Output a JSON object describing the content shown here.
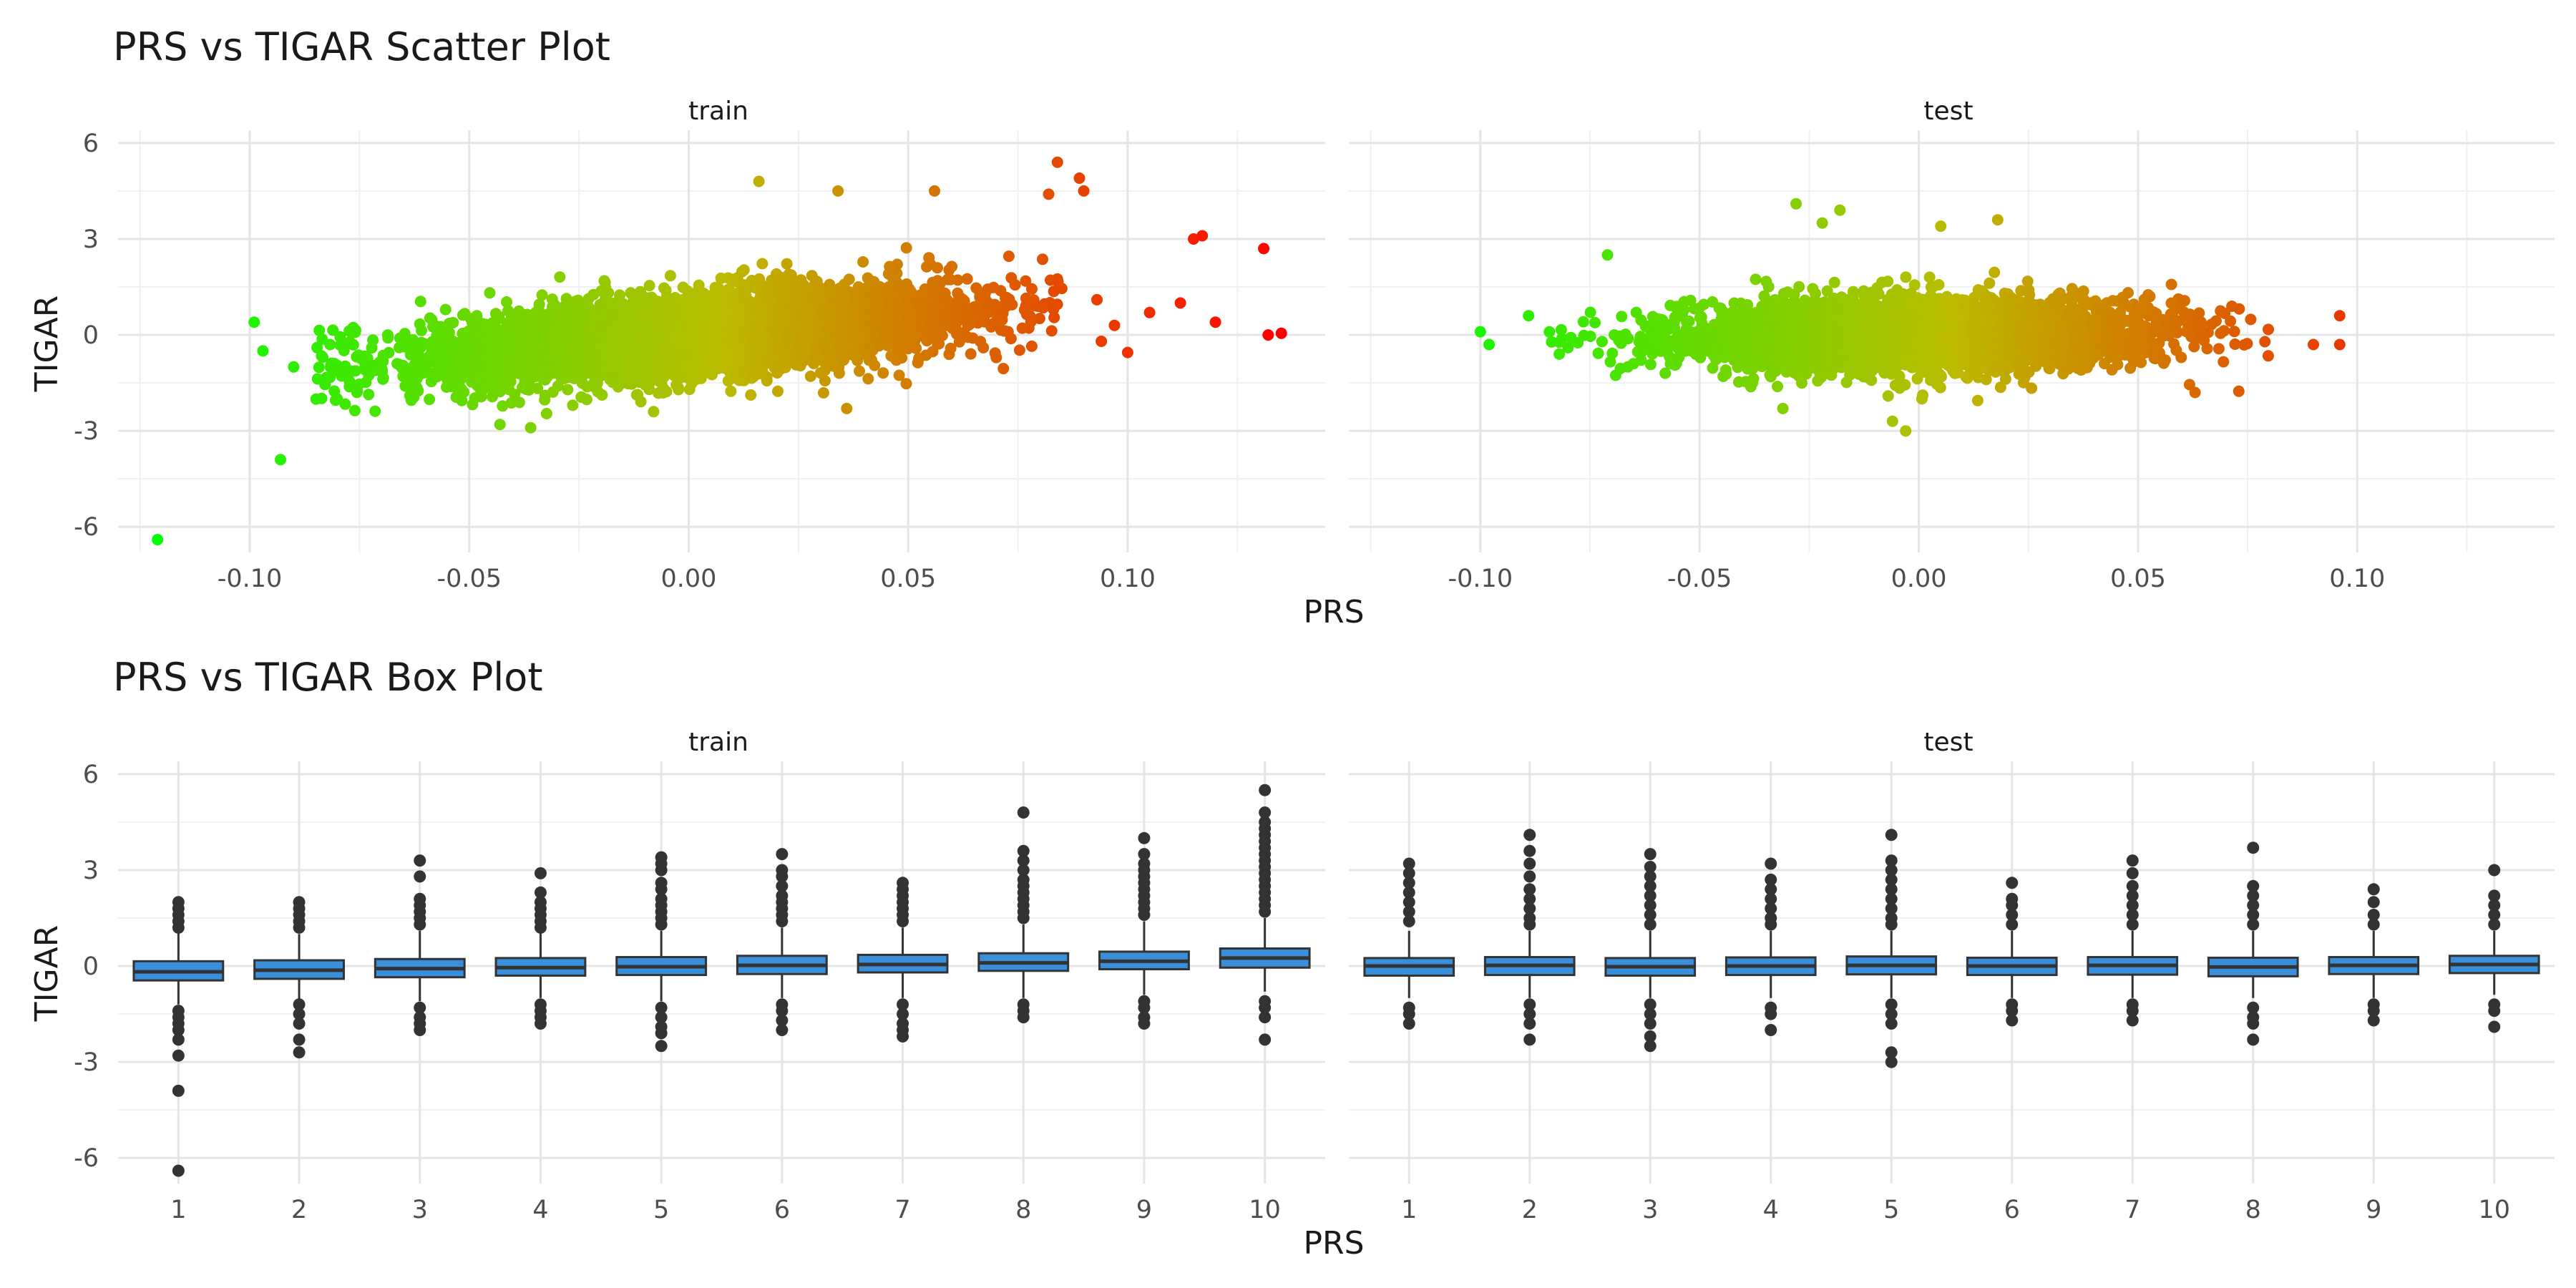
{
  "chart_data": [
    {
      "type": "scatter",
      "title": "PRS vs TIGAR Scatter Plot",
      "xlabel": "PRS",
      "ylabel": "TIGAR",
      "facets": [
        "train",
        "test"
      ],
      "xlim": [
        -0.13,
        0.145
      ],
      "ylim": [
        -6.8,
        6.4
      ],
      "x_ticks": [
        "-0.10",
        "-0.05",
        "0.00",
        "0.05",
        "0.10"
      ],
      "y_ticks": [
        "-6",
        "-3",
        "0",
        "3",
        "6"
      ],
      "grid": true,
      "color_scale": {
        "low": "#00ff00",
        "mid": "#bbbb00",
        "high": "#ff0000",
        "mapped_to": "PRS"
      },
      "series": [
        {
          "facet": "train",
          "cloud": {
            "n": 5000,
            "x_sd": 0.03,
            "slope": 12,
            "y_sd": 0.62
          },
          "points": [
            {
              "x": -0.121,
              "y": -6.4
            },
            {
              "x": -0.093,
              "y": -3.9
            },
            {
              "x": -0.099,
              "y": 0.4
            },
            {
              "x": -0.097,
              "y": -0.5
            },
            {
              "x": -0.09,
              "y": -1.0
            },
            {
              "x": 0.016,
              "y": 4.8
            },
            {
              "x": 0.034,
              "y": 4.5
            },
            {
              "x": 0.056,
              "y": 4.5
            },
            {
              "x": 0.084,
              "y": 5.4
            },
            {
              "x": 0.089,
              "y": 4.9
            },
            {
              "x": 0.09,
              "y": 4.5
            },
            {
              "x": 0.082,
              "y": 4.4
            },
            {
              "x": 0.115,
              "y": 3.0
            },
            {
              "x": 0.117,
              "y": 3.1
            },
            {
              "x": 0.131,
              "y": 2.7
            },
            {
              "x": 0.132,
              "y": 0.0
            },
            {
              "x": 0.135,
              "y": 0.05
            },
            {
              "x": 0.12,
              "y": 0.4
            },
            {
              "x": 0.112,
              "y": 1.0
            },
            {
              "x": 0.105,
              "y": 0.7
            },
            {
              "x": 0.097,
              "y": 0.3
            },
            {
              "x": 0.094,
              "y": -0.2
            },
            {
              "x": 0.1,
              "y": -0.55
            },
            {
              "x": 0.093,
              "y": 1.1
            },
            {
              "x": 0.036,
              "y": -2.3
            },
            {
              "x": -0.036,
              "y": -2.9
            },
            {
              "x": -0.043,
              "y": -2.8
            },
            {
              "x": -0.008,
              "y": -2.4
            }
          ]
        },
        {
          "facet": "test",
          "cloud": {
            "n": 4000,
            "x_sd": 0.027,
            "slope": 1,
            "y_sd": 0.55
          },
          "points": [
            {
              "x": -0.1,
              "y": 0.1
            },
            {
              "x": -0.098,
              "y": -0.3
            },
            {
              "x": -0.089,
              "y": 0.6
            },
            {
              "x": -0.082,
              "y": -0.6
            },
            {
              "x": -0.08,
              "y": -0.4
            },
            {
              "x": -0.071,
              "y": 2.5
            },
            {
              "x": -0.028,
              "y": 4.1
            },
            {
              "x": -0.018,
              "y": 3.9
            },
            {
              "x": -0.022,
              "y": 3.5
            },
            {
              "x": 0.005,
              "y": 3.4
            },
            {
              "x": 0.018,
              "y": 3.6
            },
            {
              "x": 0.096,
              "y": 0.6
            },
            {
              "x": 0.096,
              "y": -0.3
            },
            {
              "x": 0.09,
              "y": -0.3
            },
            {
              "x": -0.003,
              "y": -3.0
            },
            {
              "x": -0.006,
              "y": -2.7
            },
            {
              "x": 0.063,
              "y": -1.8
            },
            {
              "x": -0.031,
              "y": -2.3
            }
          ]
        }
      ]
    },
    {
      "type": "box",
      "title": "PRS vs TIGAR Box Plot",
      "xlabel": "PRS",
      "ylabel": "TIGAR",
      "facets": [
        "train",
        "test"
      ],
      "categories": [
        "1",
        "2",
        "3",
        "4",
        "5",
        "6",
        "7",
        "8",
        "9",
        "10"
      ],
      "ylim": [
        -6.8,
        6.4
      ],
      "y_ticks": [
        "-6",
        "-3",
        "0",
        "3",
        "6"
      ],
      "grid": true,
      "fill_color": "#3a8fdb",
      "series": [
        {
          "facet": "train",
          "boxes": [
            {
              "q1": -0.45,
              "median": -0.18,
              "q3": 0.15,
              "lo": -1.2,
              "hi": 1.05,
              "outliers": [
                1.2,
                1.4,
                1.6,
                1.8,
                2.0,
                -1.4,
                -1.6,
                -1.8,
                -2.0,
                -2.3,
                -2.8,
                -3.9,
                -6.4
              ]
            },
            {
              "q1": -0.4,
              "median": -0.13,
              "q3": 0.18,
              "lo": -1.1,
              "hi": 1.0,
              "outliers": [
                1.2,
                1.4,
                1.6,
                1.8,
                2.0,
                -1.2,
                -1.5,
                -1.8,
                -2.3,
                -2.7
              ]
            },
            {
              "q1": -0.35,
              "median": -0.08,
              "q3": 0.22,
              "lo": -1.1,
              "hi": 1.1,
              "outliers": [
                1.3,
                1.5,
                1.7,
                1.9,
                2.1,
                2.8,
                3.3,
                -1.3,
                -1.6,
                -1.8,
                -2.0
              ]
            },
            {
              "q1": -0.3,
              "median": -0.05,
              "q3": 0.25,
              "lo": -1.0,
              "hi": 1.1,
              "outliers": [
                1.2,
                1.4,
                1.6,
                1.8,
                2.0,
                2.3,
                2.9,
                -1.2,
                -1.4,
                -1.6,
                -1.8
              ]
            },
            {
              "q1": -0.28,
              "median": -0.02,
              "q3": 0.28,
              "lo": -1.1,
              "hi": 1.1,
              "outliers": [
                1.3,
                1.5,
                1.7,
                1.9,
                2.1,
                2.4,
                2.6,
                3.0,
                3.2,
                3.4,
                -1.3,
                -1.6,
                -1.9,
                -2.1,
                -2.5
              ]
            },
            {
              "q1": -0.25,
              "median": 0.02,
              "q3": 0.32,
              "lo": -1.0,
              "hi": 1.2,
              "outliers": [
                1.4,
                1.6,
                1.8,
                2.0,
                2.2,
                2.5,
                2.8,
                3.0,
                3.5,
                -1.2,
                -1.4,
                -1.7,
                -2.0
              ]
            },
            {
              "q1": -0.2,
              "median": 0.05,
              "q3": 0.35,
              "lo": -1.0,
              "hi": 1.2,
              "outliers": [
                1.4,
                1.6,
                1.8,
                2.0,
                2.2,
                2.4,
                2.6,
                -1.2,
                -1.5,
                -1.8,
                -2.0,
                -2.2
              ]
            },
            {
              "q1": -0.15,
              "median": 0.1,
              "q3": 0.4,
              "lo": -1.0,
              "hi": 1.3,
              "outliers": [
                1.5,
                1.7,
                1.9,
                2.1,
                2.3,
                2.5,
                2.7,
                3.0,
                3.3,
                3.6,
                4.8,
                -1.2,
                -1.4,
                -1.6
              ]
            },
            {
              "q1": -0.1,
              "median": 0.15,
              "q3": 0.45,
              "lo": -0.9,
              "hi": 1.4,
              "outliers": [
                1.6,
                1.8,
                2.0,
                2.2,
                2.4,
                2.6,
                2.8,
                3.0,
                3.2,
                3.5,
                4.0,
                -1.1,
                -1.3,
                -1.6,
                -1.8
              ]
            },
            {
              "q1": -0.05,
              "median": 0.25,
              "q3": 0.55,
              "lo": -0.8,
              "hi": 1.5,
              "outliers": [
                1.7,
                1.9,
                2.1,
                2.3,
                2.5,
                2.7,
                2.9,
                3.1,
                3.3,
                3.5,
                3.7,
                3.9,
                4.1,
                4.3,
                4.5,
                4.8,
                5.5,
                -1.1,
                -1.3,
                -1.6,
                -2.3
              ]
            }
          ]
        },
        {
          "facet": "test",
          "boxes": [
            {
              "q1": -0.3,
              "median": 0.0,
              "q3": 0.25,
              "lo": -1.0,
              "hi": 1.1,
              "outliers": [
                1.4,
                1.7,
                2.0,
                2.3,
                2.6,
                2.9,
                3.2,
                -1.3,
                -1.5,
                -1.8
              ]
            },
            {
              "q1": -0.28,
              "median": 0.02,
              "q3": 0.28,
              "lo": -1.0,
              "hi": 1.1,
              "outliers": [
                1.3,
                1.5,
                1.8,
                2.1,
                2.4,
                2.8,
                3.2,
                3.6,
                4.1,
                -1.2,
                -1.5,
                -1.8,
                -2.3
              ]
            },
            {
              "q1": -0.3,
              "median": -0.02,
              "q3": 0.25,
              "lo": -1.0,
              "hi": 1.1,
              "outliers": [
                1.3,
                1.6,
                1.9,
                2.2,
                2.5,
                2.8,
                3.1,
                3.5,
                -1.2,
                -1.5,
                -1.8,
                -2.2,
                -2.5
              ]
            },
            {
              "q1": -0.28,
              "median": 0.0,
              "q3": 0.27,
              "lo": -1.0,
              "hi": 1.1,
              "outliers": [
                1.3,
                1.5,
                1.8,
                2.1,
                2.4,
                2.7,
                3.2,
                -1.3,
                -1.5,
                -2.0
              ]
            },
            {
              "q1": -0.26,
              "median": 0.02,
              "q3": 0.3,
              "lo": -1.0,
              "hi": 1.1,
              "outliers": [
                1.3,
                1.5,
                1.8,
                2.1,
                2.4,
                2.7,
                3.0,
                3.3,
                4.1,
                -1.2,
                -1.5,
                -1.8,
                -2.7,
                -3.0
              ]
            },
            {
              "q1": -0.28,
              "median": 0.0,
              "q3": 0.26,
              "lo": -1.0,
              "hi": 1.1,
              "outliers": [
                1.3,
                1.6,
                1.9,
                2.1,
                2.6,
                -1.2,
                -1.4,
                -1.7
              ]
            },
            {
              "q1": -0.27,
              "median": 0.02,
              "q3": 0.28,
              "lo": -1.0,
              "hi": 1.1,
              "outliers": [
                1.3,
                1.6,
                1.9,
                2.2,
                2.5,
                2.9,
                3.3,
                -1.2,
                -1.4,
                -1.7
              ]
            },
            {
              "q1": -0.32,
              "median": -0.03,
              "q3": 0.26,
              "lo": -1.0,
              "hi": 1.1,
              "outliers": [
                1.3,
                1.6,
                1.9,
                2.2,
                2.5,
                3.7,
                -1.3,
                -1.6,
                -1.8,
                -2.3
              ]
            },
            {
              "q1": -0.25,
              "median": 0.02,
              "q3": 0.28,
              "lo": -1.0,
              "hi": 1.1,
              "outliers": [
                1.3,
                1.6,
                2.0,
                2.4,
                -1.2,
                -1.4,
                -1.7
              ]
            },
            {
              "q1": -0.22,
              "median": 0.05,
              "q3": 0.32,
              "lo": -0.9,
              "hi": 1.1,
              "outliers": [
                1.3,
                1.6,
                1.9,
                2.2,
                3.0,
                -1.2,
                -1.4,
                -1.9
              ]
            }
          ]
        }
      ]
    }
  ]
}
